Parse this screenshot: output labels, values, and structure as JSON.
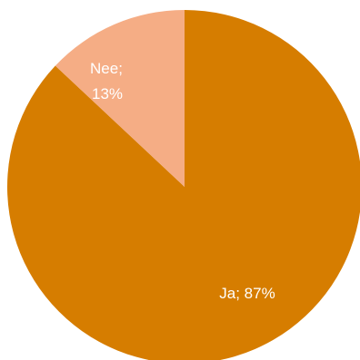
{
  "chart_data": {
    "type": "pie",
    "slices": [
      {
        "label": "Ja",
        "value": 87,
        "color": "#D67D00",
        "label_text": "Ja; 87%"
      },
      {
        "label": "Nee",
        "value": 13,
        "color": "#F5AD85",
        "label_lines": [
          "Nee;",
          "13%"
        ]
      }
    ]
  }
}
